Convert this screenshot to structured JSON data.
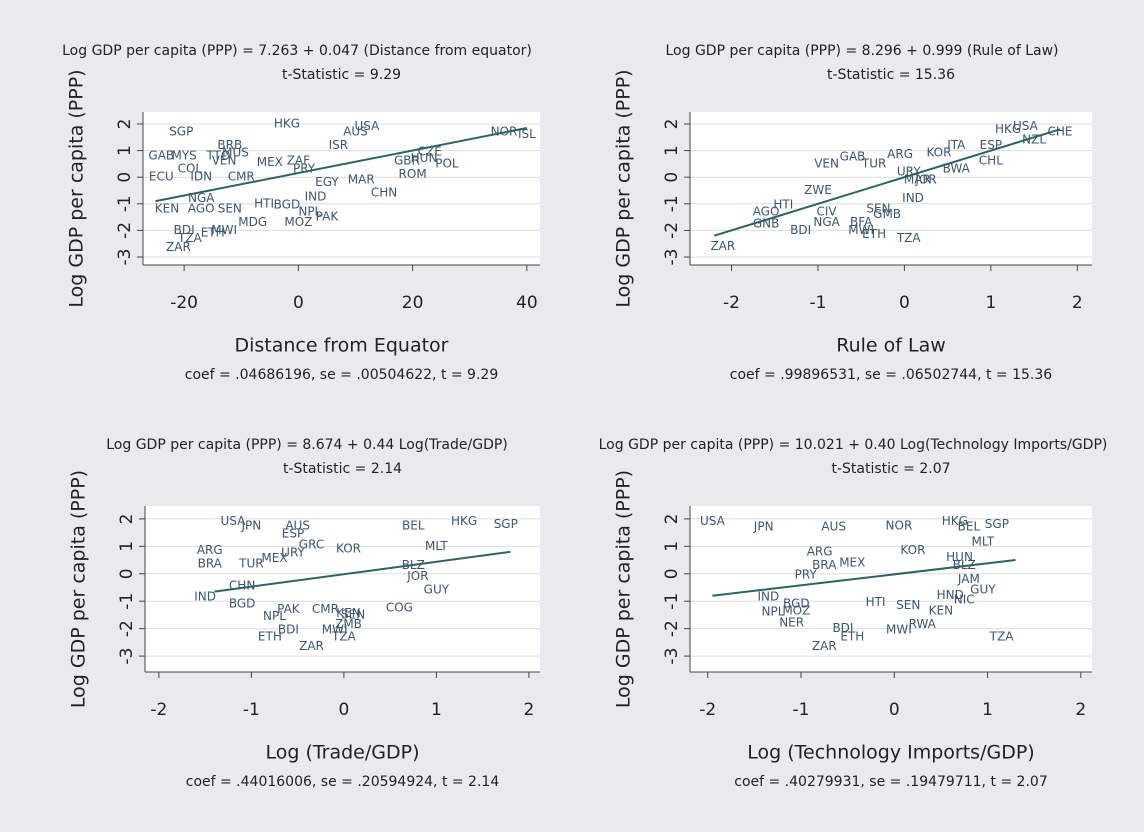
{
  "chart_data": [
    {
      "type": "scatter",
      "title": "Log GDP per capita (PPP) = 7.263 + 0.047 (Distance from equator)",
      "subtitle": "t-Statistic = 9.29",
      "x_label": "Distance from Equator",
      "y_label": "Log GDP per capita (PPP)",
      "note": "coef = .04686196, se = .00504622, t = 9.29",
      "labels": [
        "SGP",
        "GAB",
        "MYS",
        "BRB",
        "HKG",
        "MUS",
        "TTO",
        "COL",
        "VEN",
        "MEX",
        "ZAF",
        "PRY",
        "ECU",
        "IDN",
        "CMR",
        "NGA",
        "KEN",
        "AGO",
        "SEN",
        "HTI",
        "BGD",
        "NPL",
        "IND",
        "PAK",
        "BDI",
        "TZA",
        "ZAR",
        "ETH",
        "MWI",
        "MDG",
        "MOZ",
        "USA",
        "ISR",
        "AUS",
        "EGY",
        "MAR",
        "CHN",
        "HUN",
        "ROM",
        "POL",
        "CZE",
        "GBR",
        "NOR",
        "ISL"
      ],
      "x": [
        -20.5,
        -24,
        -20,
        -12,
        -2,
        -11,
        -14,
        -19,
        -13,
        -5,
        0,
        1,
        -24,
        -17,
        -10,
        -17,
        -23,
        -17,
        -12,
        -6,
        -2,
        2,
        3,
        5,
        -20,
        -19,
        -21,
        -15,
        -13,
        -8,
        0,
        12,
        7,
        10,
        5,
        11,
        15,
        22,
        20,
        26,
        23,
        19,
        36,
        40
      ],
      "values": [
        1.7,
        0.8,
        0.8,
        1.2,
        2.0,
        0.9,
        0.8,
        0.3,
        0.6,
        0.55,
        0.6,
        0.3,
        0,
        0,
        0,
        -0.8,
        -1.2,
        -1.2,
        -1.2,
        -1.0,
        -1.05,
        -1.3,
        -0.75,
        -1.5,
        -2.0,
        -2.3,
        -2.65,
        -2.1,
        -2.0,
        -1.7,
        -1.7,
        1.9,
        1.2,
        1.7,
        -0.2,
        -0.1,
        -0.6,
        0.7,
        0.1,
        0.5,
        0.95,
        0.6,
        1.7,
        1.6
      ],
      "fit": {
        "x": [
          -25,
          40
        ],
        "values": [
          -0.9,
          1.85
        ]
      },
      "color": "#3d5670",
      "fit_color": "#2f6262",
      "xlim": [
        -27.2,
        42.3
      ],
      "ylim": [
        -3.3,
        2.45
      ],
      "xticks": [
        -20,
        0,
        20,
        40
      ],
      "yticks": [
        2,
        1,
        0,
        -1,
        -2,
        -3
      ],
      "grid": true
    },
    {
      "type": "scatter",
      "title": "Log GDP per capita (PPP) = 8.296 + 0.999 (Rule of Law)",
      "subtitle": "t-Statistic = 15.36",
      "x_label": "Rule of Law",
      "y_label": "Log GDP per capita (PPP)",
      "note": "coef = .99896531, se = .06502744, t = 15.36",
      "labels": [
        "ZAR",
        "AGO",
        "GNB",
        "BDI",
        "HTI",
        "VEN",
        "GAB",
        "ARG",
        "ZWE",
        "CIV",
        "BFA",
        "MWI",
        "ETH",
        "TZA",
        "IND",
        "SEN",
        "GMB",
        "TUR",
        "NGA",
        "CHL",
        "ITA",
        "KOR",
        "HKG",
        "USA",
        "NZL",
        "CHE",
        "JOR",
        "MAR",
        "URY",
        "ESP",
        "BWA"
      ],
      "x": [
        -2.1,
        -1.6,
        -1.6,
        -1.2,
        -1.4,
        -0.9,
        -0.6,
        -0.05,
        -1.0,
        -0.9,
        -0.5,
        -0.5,
        -0.35,
        0.05,
        0.1,
        -0.3,
        -0.2,
        -0.35,
        -0.9,
        1.0,
        0.6,
        0.4,
        1.2,
        1.4,
        1.5,
        1.8,
        0.25,
        0.15,
        0.05,
        1.0,
        0.6
      ],
      "values": [
        -2.6,
        -1.3,
        -1.75,
        -2.0,
        -1.05,
        0.5,
        0.75,
        0.85,
        -0.5,
        -1.3,
        -1.7,
        -2.0,
        -2.15,
        -2.3,
        -0.8,
        -1.2,
        -1.4,
        0.5,
        -1.7,
        0.6,
        1.2,
        0.9,
        1.8,
        1.9,
        1.4,
        1.7,
        -0.1,
        -0.1,
        0.2,
        1.2,
        0.3
      ],
      "fit": {
        "x": [
          -2.2,
          1.8
        ],
        "values": [
          -2.2,
          1.8
        ]
      },
      "color": "#3d5670",
      "fit_color": "#2f6262",
      "xlim": [
        -2.48,
        2.17
      ],
      "ylim": [
        -3.3,
        2.45
      ],
      "xticks": [
        -2,
        -1,
        0,
        1,
        2
      ],
      "yticks": [
        2,
        1,
        0,
        -1,
        -2,
        -3
      ],
      "grid": true
    },
    {
      "type": "scatter",
      "title": "Log GDP per capita (PPP) = 8.674 + 0.44 Log(Trade/GDP)",
      "subtitle": "t-Statistic = 2.14",
      "x_label": "Log (Trade/GDP)",
      "y_label": "Log GDP per capita (PPP)",
      "note": "coef = .44016006, se = .20594924, t = 2.14",
      "labels": [
        "USA",
        "JPN",
        "AUS",
        "ESP",
        "ARG",
        "BRA",
        "TUR",
        "MEX",
        "URY",
        "CHN",
        "IND",
        "BGD",
        "PAK",
        "NPL",
        "BDI",
        "ETH",
        "ZAR",
        "TZA",
        "MWI",
        "ZMB",
        "COG",
        "GUY",
        "JOR",
        "BLZ",
        "MLT",
        "HKG",
        "SGP",
        "BEL",
        "GRC",
        "KOR",
        "CMR",
        "KEN",
        "SEN"
      ],
      "x": [
        -1.2,
        -1.0,
        -0.5,
        -0.55,
        -1.45,
        -1.45,
        -1.0,
        -0.75,
        -0.55,
        -1.1,
        -1.5,
        -1.1,
        -0.6,
        -0.75,
        -0.6,
        -0.8,
        -0.35,
        0.0,
        -0.1,
        0.05,
        0.6,
        1.0,
        0.8,
        0.75,
        1.0,
        1.3,
        1.75,
        0.75,
        -0.35,
        0.05,
        -0.2,
        0.05,
        0.1
      ],
      "values": [
        1.9,
        1.75,
        1.75,
        1.45,
        0.85,
        0.35,
        0.35,
        0.55,
        0.75,
        -0.45,
        -0.85,
        -1.1,
        -1.3,
        -1.55,
        -2.05,
        -2.3,
        -2.65,
        -2.3,
        -2.05,
        -1.85,
        -1.25,
        -0.6,
        -0.1,
        0.3,
        1.0,
        1.9,
        1.8,
        1.75,
        1.05,
        0.9,
        -1.3,
        -1.45,
        -1.5
      ],
      "fit": {
        "x": [
          -1.4,
          1.8
        ],
        "values": [
          -0.65,
          0.8
        ]
      },
      "color": "#3d5670",
      "fit_color": "#2f6262",
      "xlim": [
        -2.15,
        2.12
      ],
      "ylim": [
        -3.58,
        2.47
      ],
      "xticks": [
        -2,
        -1,
        0,
        1,
        2
      ],
      "yticks": [
        2,
        1,
        0,
        -1,
        -2,
        -3
      ],
      "grid": true
    },
    {
      "type": "scatter",
      "title": "Log GDP per capita (PPP) = 10.021 + 0.40 Log(Technology Imports/GDP)",
      "subtitle": "t-Statistic = 2.07",
      "x_label": "Log (Technology Imports/GDP)",
      "y_label": "Log GDP per capita (PPP)",
      "note": "coef = .40279931, se = .19479711, t = 2.07",
      "labels": [
        "USA",
        "JPN",
        "AUS",
        "ARG",
        "BRA",
        "MEX",
        "PRY",
        "IND",
        "BGD",
        "NPL",
        "MOZ",
        "NER",
        "ZAR",
        "ETH",
        "BDI",
        "MWI",
        "RWA",
        "TZA",
        "GUY",
        "JAM",
        "HND",
        "NIC",
        "KEN",
        "SEN",
        "HTI",
        "HKG",
        "SGP",
        "MLT",
        "BLZ",
        "HUN",
        "KOR",
        "NOR",
        "BEL"
      ],
      "x": [
        -1.95,
        -1.4,
        -0.65,
        -0.8,
        -0.75,
        -0.45,
        -0.95,
        -1.35,
        -1.05,
        -1.3,
        -1.05,
        -1.1,
        -0.75,
        -0.45,
        -0.55,
        0.05,
        0.3,
        1.15,
        0.95,
        0.8,
        0.6,
        0.75,
        0.5,
        0.15,
        -0.2,
        0.65,
        1.1,
        0.95,
        0.75,
        0.7,
        0.2,
        0.05,
        0.8
      ],
      "values": [
        1.9,
        1.7,
        1.7,
        0.8,
        0.3,
        0.4,
        -0.05,
        -0.85,
        -1.1,
        -1.4,
        -1.35,
        -1.8,
        -2.65,
        -2.3,
        -2.0,
        -2.05,
        -1.85,
        -2.3,
        -0.6,
        -0.2,
        -0.8,
        -0.95,
        -1.35,
        -1.15,
        -1.05,
        1.9,
        1.8,
        1.15,
        0.3,
        0.6,
        0.85,
        1.75,
        1.7
      ],
      "fit": {
        "x": [
          -1.95,
          1.3
        ],
        "values": [
          -0.8,
          0.5
        ]
      },
      "color": "#3d5670",
      "fit_color": "#2f6262",
      "xlim": [
        -2.19,
        2.12
      ],
      "ylim": [
        -3.58,
        2.47
      ],
      "xticks": [
        -2,
        -1,
        0,
        1,
        2
      ],
      "yticks": [
        2,
        1,
        0,
        -1,
        -2,
        -3
      ],
      "grid": true
    }
  ]
}
